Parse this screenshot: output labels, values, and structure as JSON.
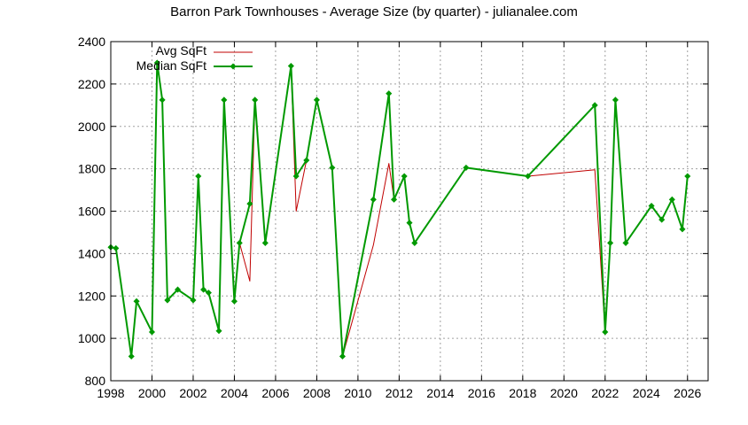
{
  "chart_data": {
    "type": "line",
    "title": "Barron Park Townhouses - Average Size (by quarter) - julianalee.com",
    "xlabel": "",
    "ylabel": "",
    "xlim": [
      1998,
      2027
    ],
    "ylim": [
      800,
      2400
    ],
    "x_ticks": [
      "1998",
      "2000",
      "2002",
      "2004",
      "2006",
      "2008",
      "2010",
      "2012",
      "2014",
      "2016",
      "2018",
      "2020",
      "2022",
      "2024",
      "2026"
    ],
    "y_ticks": [
      "800",
      "1000",
      "1200",
      "1400",
      "1600",
      "1800",
      "2000",
      "2200",
      "2400"
    ],
    "grid": true,
    "legend_position": "top-left",
    "series": [
      {
        "name": "Avg SqFt",
        "color": "#c00000",
        "marker": "none",
        "x": [
          1998.0,
          1998.25,
          1999.0,
          1999.25,
          2000.0,
          2000.25,
          2000.5,
          2000.75,
          2001.25,
          2002.0,
          2002.25,
          2002.5,
          2002.75,
          2003.25,
          2003.5,
          2004.0,
          2004.25,
          2004.75,
          2005.0,
          2005.5,
          2006.75,
          2007.0,
          2007.5,
          2008.0,
          2008.75,
          2009.25,
          2010.75,
          2011.5,
          2011.75,
          2012.25,
          2012.5,
          2012.75,
          2015.25,
          2018.25,
          2021.5,
          2022.0,
          2022.25,
          2022.5,
          2023.0,
          2024.25,
          2024.75,
          2025.25,
          2025.75,
          2026.0
        ],
        "y": [
          1430,
          1425,
          915,
          1175,
          1030,
          2300,
          2125,
          1180,
          1230,
          1180,
          1765,
          1230,
          1215,
          1035,
          2125,
          1175,
          1450,
          1270,
          2125,
          1450,
          2285,
          1600,
          1840,
          2125,
          1805,
          915,
          1440,
          1825,
          1655,
          1765,
          1545,
          1450,
          1805,
          1765,
          1795,
          1030,
          1450,
          2125,
          1450,
          1625,
          1560,
          1655,
          1515,
          1765
        ]
      },
      {
        "name": "Median SqFt",
        "color": "#009900",
        "marker": "diamond",
        "x": [
          1998.0,
          1998.25,
          1999.0,
          1999.25,
          2000.0,
          2000.25,
          2000.5,
          2000.75,
          2001.25,
          2002.0,
          2002.25,
          2002.5,
          2002.75,
          2003.25,
          2003.5,
          2004.0,
          2004.25,
          2004.75,
          2005.0,
          2005.5,
          2006.75,
          2007.0,
          2007.5,
          2008.0,
          2008.75,
          2009.25,
          2010.75,
          2011.5,
          2011.75,
          2012.25,
          2012.5,
          2012.75,
          2015.25,
          2018.25,
          2021.5,
          2022.0,
          2022.25,
          2022.5,
          2023.0,
          2024.25,
          2024.75,
          2025.25,
          2025.75,
          2026.0
        ],
        "y": [
          1430,
          1425,
          915,
          1175,
          1030,
          2300,
          2125,
          1180,
          1230,
          1180,
          1765,
          1230,
          1215,
          1035,
          2125,
          1175,
          1450,
          1635,
          2125,
          1450,
          2285,
          1765,
          1840,
          2125,
          1805,
          915,
          1655,
          2155,
          1655,
          1765,
          1545,
          1450,
          1805,
          1765,
          2100,
          1030,
          1450,
          2125,
          1450,
          1625,
          1560,
          1655,
          1515,
          1765
        ]
      }
    ]
  }
}
